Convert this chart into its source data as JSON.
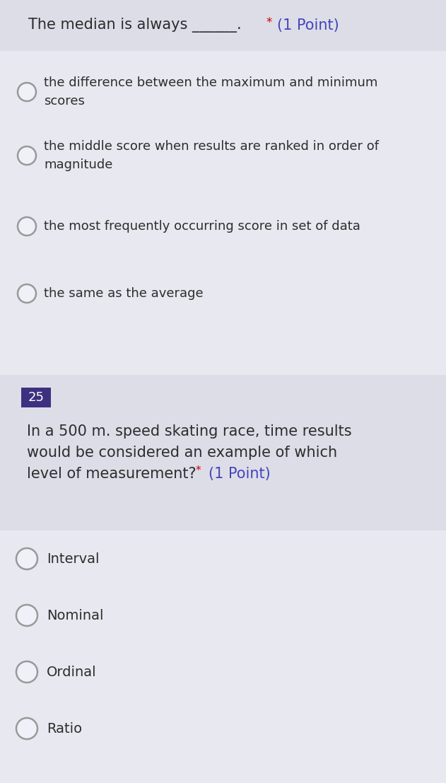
{
  "bg_color": "#e8e8f0",
  "q1_header_bg": "#dddde8",
  "q1_header_text": "The median is always ______.",
  "q1_star": "*",
  "q1_point": "(1 Point)",
  "q1_options": [
    "the difference between the maximum and minimum\nscores",
    "the middle score when results are ranked in order of\nmagnitude",
    "the most frequently occurring score in set of data",
    "the same as the average"
  ],
  "q2_number": "25",
  "q2_number_bg": "#3d3080",
  "q2_number_color": "#ffffff",
  "q2_header_bg": "#dddde8",
  "q2_question_line1": "In a 500 m. speed skating race, time results",
  "q2_question_line2": "would be considered an example of which",
  "q2_question_line3": "level of measurement?",
  "q2_star": "*",
  "q2_point": "(1 Point)",
  "q2_options": [
    "Interval",
    "Nominal",
    "Ordinal",
    "Ratio"
  ],
  "text_color": "#2d2d2d",
  "option_text_color": "#2d2d2d",
  "radio_edge_color": "#999999",
  "radio_face_color": "#f0f0f8",
  "star_color": "#cc0000",
  "point_color": "#4444bb",
  "header_text_color": "#2d2d2d",
  "font_size_header": 15,
  "font_size_option": 13,
  "font_size_number": 13,
  "font_size_q2_text": 15
}
